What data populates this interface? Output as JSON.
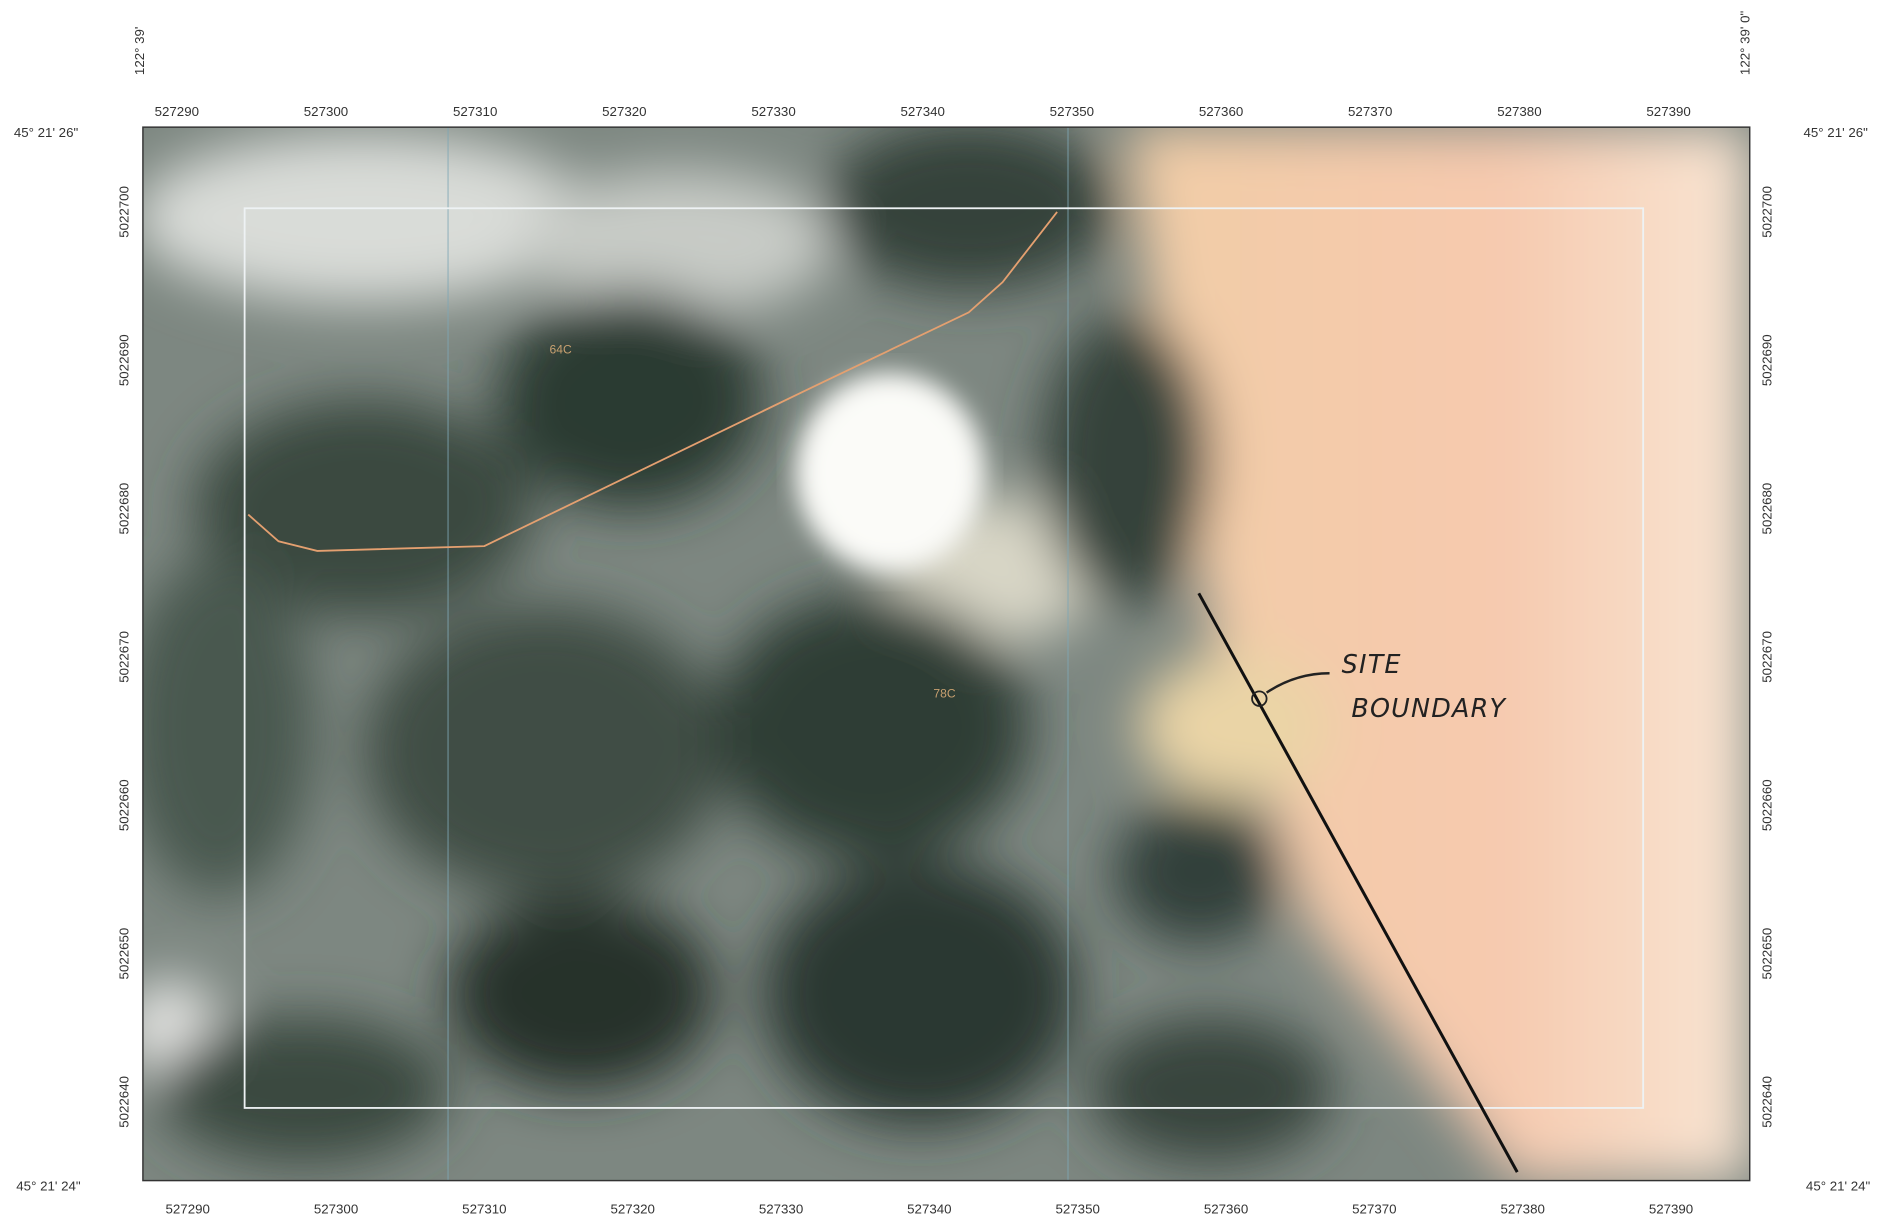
{
  "corner_labels": {
    "top_left": "45° 21' 26\"",
    "top_right": "45° 21' 26\"",
    "bottom_left": "45° 21' 24\"",
    "bottom_right": "45° 21' 24\"",
    "top_left_longitude": "122° 39'",
    "top_right_longitude": "122° 39' 0\""
  },
  "easting_top": [
    "527290",
    "527300",
    "527310",
    "527320",
    "527330",
    "527340",
    "527350",
    "527360",
    "527370",
    "527380",
    "527390"
  ],
  "easting_bottom": [
    "527290",
    "527300",
    "527310",
    "527320",
    "527330",
    "527340",
    "527350",
    "527360",
    "527370",
    "527380",
    "527390"
  ],
  "northing_left": [
    "5022700",
    "5022690",
    "5022680",
    "5022670",
    "5022660",
    "5022650",
    "5022640"
  ],
  "northing_right": [
    "5022700",
    "5022690",
    "5022680",
    "5022670",
    "5022660",
    "5022650",
    "5022640"
  ],
  "map_units": [
    "64C",
    "78C"
  ],
  "annotation": {
    "line1": "SITE",
    "line2": "BOUNDARY"
  }
}
